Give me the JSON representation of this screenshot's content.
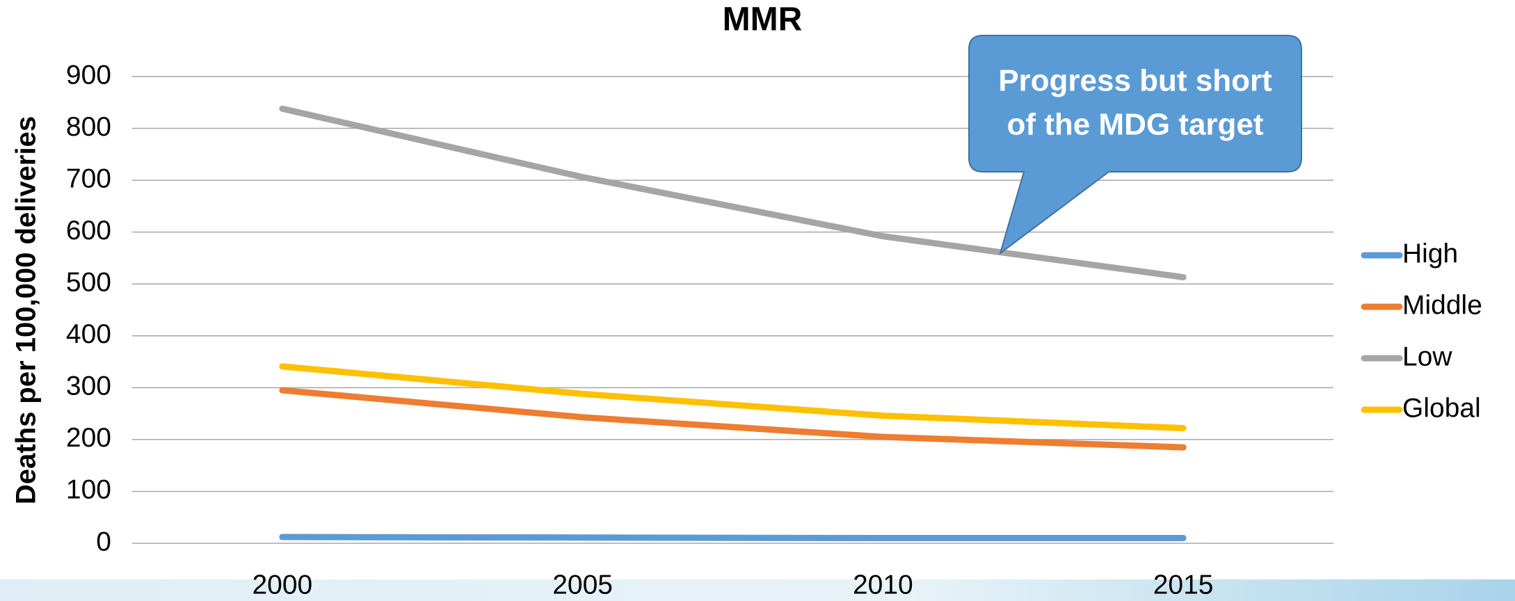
{
  "chart_data": {
    "type": "line",
    "title": "MMR",
    "y_label": "Deaths per 100,000 deliveries",
    "categories": [
      "2000",
      "2005",
      "2010",
      "2015"
    ],
    "series": [
      {
        "name": "High",
        "color": "#5b9bd5",
        "values": [
          12,
          11,
          10,
          10
        ]
      },
      {
        "name": "Middle",
        "color": "#ed7d31",
        "values": [
          295,
          243,
          205,
          185
        ]
      },
      {
        "name": "Low",
        "color": "#a5a5a5",
        "values": [
          838,
          706,
          592,
          513
        ]
      },
      {
        "name": "Global",
        "color": "#ffc000",
        "values": [
          341,
          288,
          246,
          222
        ]
      }
    ],
    "ylim": [
      0,
      900
    ],
    "yticks": [
      0,
      100,
      200,
      300,
      400,
      500,
      600,
      700,
      800,
      900
    ],
    "grid": true,
    "legend": "right",
    "annotation": {
      "lines": [
        "Progress but short",
        "of the MDG target"
      ]
    }
  }
}
